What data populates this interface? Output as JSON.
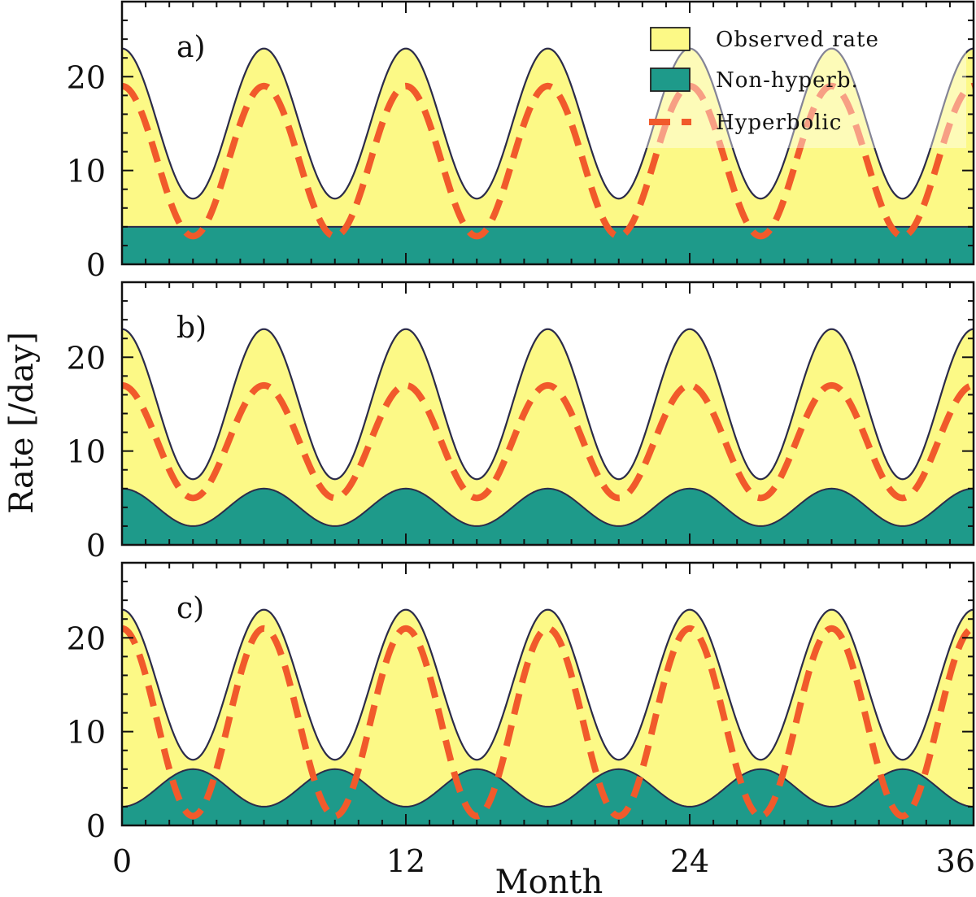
{
  "chart_data": {
    "type": "area",
    "xlabel": "Month",
    "ylabel": "Rate [/day]",
    "xlim": [
      0,
      36
    ],
    "ylim": [
      0,
      28
    ],
    "x_ticks": [
      0,
      12,
      24,
      36
    ],
    "y_ticks": [
      0,
      10,
      20
    ],
    "legend": {
      "placement": "top-right of panel a",
      "entries": [
        {
          "label": "Observed rate",
          "kind": "fill",
          "color": "#fcf986"
        },
        {
          "label": "Non-hyperb.",
          "kind": "fill",
          "color": "#1e9a8a"
        },
        {
          "label": "Hyperbolic",
          "kind": "dashed-line",
          "color": "#f15a2b"
        }
      ]
    },
    "colors": {
      "observed_fill": "#fcf986",
      "non_hyperbolic_fill": "#1e9a8a",
      "hyperbolic_line": "#f15a2b",
      "outline": "#2b2b4a"
    },
    "period_months": 6,
    "panels": [
      {
        "label": "a)",
        "series": [
          {
            "name": "Observed rate",
            "form": "sinusoid",
            "mean": 15,
            "amplitude": 8,
            "phase": 0
          },
          {
            "name": "Non-hyperb.",
            "form": "constant",
            "value": 4
          },
          {
            "name": "Hyperbolic",
            "form": "sinusoid",
            "mean": 11,
            "amplitude": 8,
            "phase": 0
          }
        ],
        "key_points": {
          "x": [
            0,
            3,
            6,
            9,
            12,
            15,
            18,
            21,
            24,
            27,
            30,
            33,
            36
          ],
          "observed": [
            23,
            7,
            23,
            7,
            23,
            7,
            23,
            7,
            23,
            7,
            23,
            7,
            23
          ]
        }
      },
      {
        "label": "b)",
        "series": [
          {
            "name": "Observed rate",
            "form": "sinusoid",
            "mean": 15,
            "amplitude": 8,
            "phase": 0
          },
          {
            "name": "Non-hyperb.",
            "form": "sinusoid",
            "mean": 4,
            "amplitude": 2,
            "phase": 0
          },
          {
            "name": "Hyperbolic",
            "form": "sinusoid",
            "mean": 11,
            "amplitude": 6,
            "phase": 0
          }
        ],
        "key_points": {
          "x": [
            0,
            3,
            6,
            9,
            12,
            15,
            18,
            21,
            24,
            27,
            30,
            33,
            36
          ],
          "observed": [
            23,
            7,
            23,
            7,
            23,
            7,
            23,
            7,
            23,
            7,
            23,
            7,
            23
          ]
        }
      },
      {
        "label": "c)",
        "series": [
          {
            "name": "Observed rate",
            "form": "sinusoid",
            "mean": 15,
            "amplitude": 8,
            "phase": 0
          },
          {
            "name": "Non-hyperb.",
            "form": "sinusoid",
            "mean": 4,
            "amplitude": 2,
            "phase": 3
          },
          {
            "name": "Hyperbolic",
            "form": "sinusoid",
            "mean": 11,
            "amplitude": 10,
            "phase": 0
          }
        ],
        "key_points": {
          "x": [
            0,
            3,
            6,
            9,
            12,
            15,
            18,
            21,
            24,
            27,
            30,
            33,
            36
          ],
          "observed": [
            23,
            7,
            23,
            7,
            23,
            7,
            23,
            7,
            23,
            7,
            23,
            7,
            23
          ]
        }
      }
    ]
  }
}
